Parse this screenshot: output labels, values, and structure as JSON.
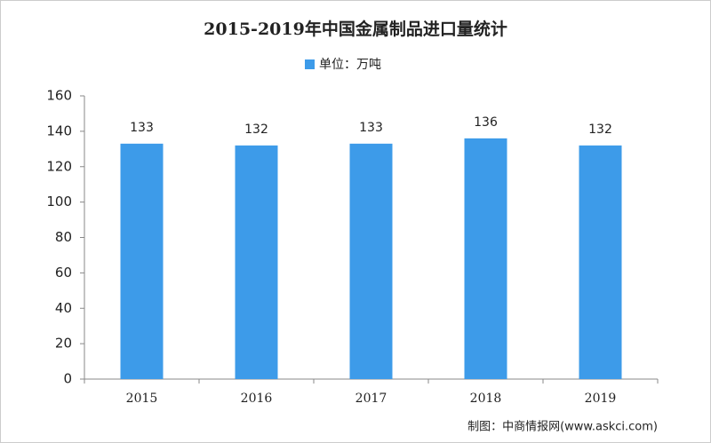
{
  "chart_data": {
    "type": "bar",
    "title": "2015-2019年中国金属制品进口量统计",
    "legend": "单位：万吨",
    "categories": [
      "2015",
      "2016",
      "2017",
      "2018",
      "2019"
    ],
    "values": [
      133,
      132,
      133,
      136,
      132
    ],
    "color": "#3d9be9",
    "ylim": [
      0,
      160
    ],
    "yticks": [
      0,
      20,
      40,
      60,
      80,
      100,
      120,
      140,
      160
    ],
    "grid": false,
    "source": "制图：中商情报网(www.askci.com)"
  }
}
